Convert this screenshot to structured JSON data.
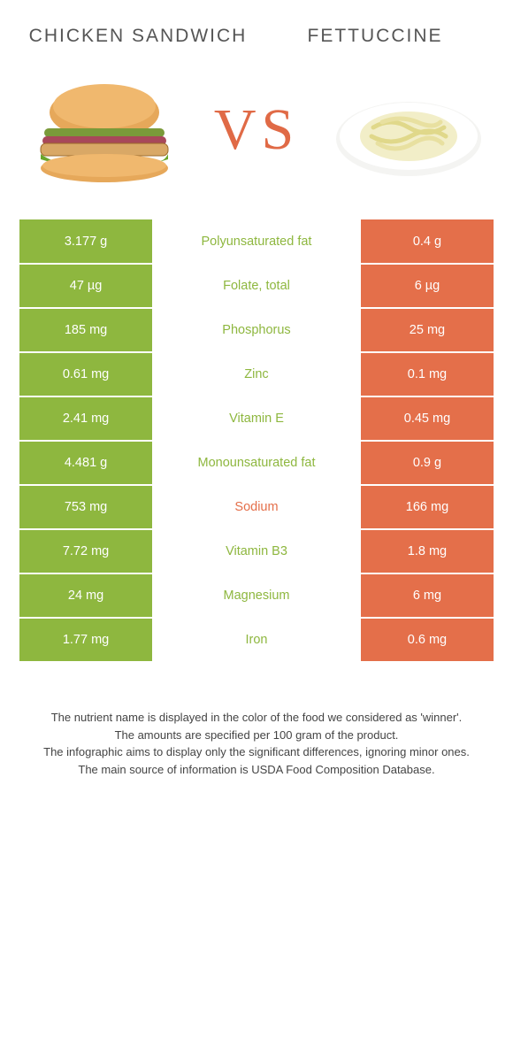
{
  "colors": {
    "left_bg": "#8eb73f",
    "right_bg": "#e46f4a",
    "left_text": "#8eb73f",
    "right_text": "#e46f4a",
    "vs": "#e06a46",
    "title": "#555555",
    "footer": "#444444"
  },
  "header": {
    "left_title": "Chicken sandwich",
    "right_title": "Fettuccine",
    "vs_label": "VS"
  },
  "rows": [
    {
      "left": "3.177 g",
      "label": "Polyunsaturated fat",
      "right": "0.4 g",
      "winner": "left"
    },
    {
      "left": "47 µg",
      "label": "Folate, total",
      "right": "6 µg",
      "winner": "left"
    },
    {
      "left": "185 mg",
      "label": "Phosphorus",
      "right": "25 mg",
      "winner": "left"
    },
    {
      "left": "0.61 mg",
      "label": "Zinc",
      "right": "0.1 mg",
      "winner": "left"
    },
    {
      "left": "2.41 mg",
      "label": "Vitamin E",
      "right": "0.45 mg",
      "winner": "left"
    },
    {
      "left": "4.481 g",
      "label": "Monounsaturated fat",
      "right": "0.9 g",
      "winner": "left"
    },
    {
      "left": "753 mg",
      "label": "Sodium",
      "right": "166 mg",
      "winner": "right"
    },
    {
      "left": "7.72 mg",
      "label": "Vitamin B3",
      "right": "1.8 mg",
      "winner": "left"
    },
    {
      "left": "24 mg",
      "label": "Magnesium",
      "right": "6 mg",
      "winner": "left"
    },
    {
      "left": "1.77 mg",
      "label": "Iron",
      "right": "0.6 mg",
      "winner": "left"
    }
  ],
  "footer": {
    "line1": "The nutrient name is displayed in the color of the food we considered as 'winner'.",
    "line2": "The amounts are specified per 100 gram of the product.",
    "line3": "The infographic aims to display only the significant differences, ignoring minor ones.",
    "line4": "The main source of information is USDA Food Composition Database."
  }
}
